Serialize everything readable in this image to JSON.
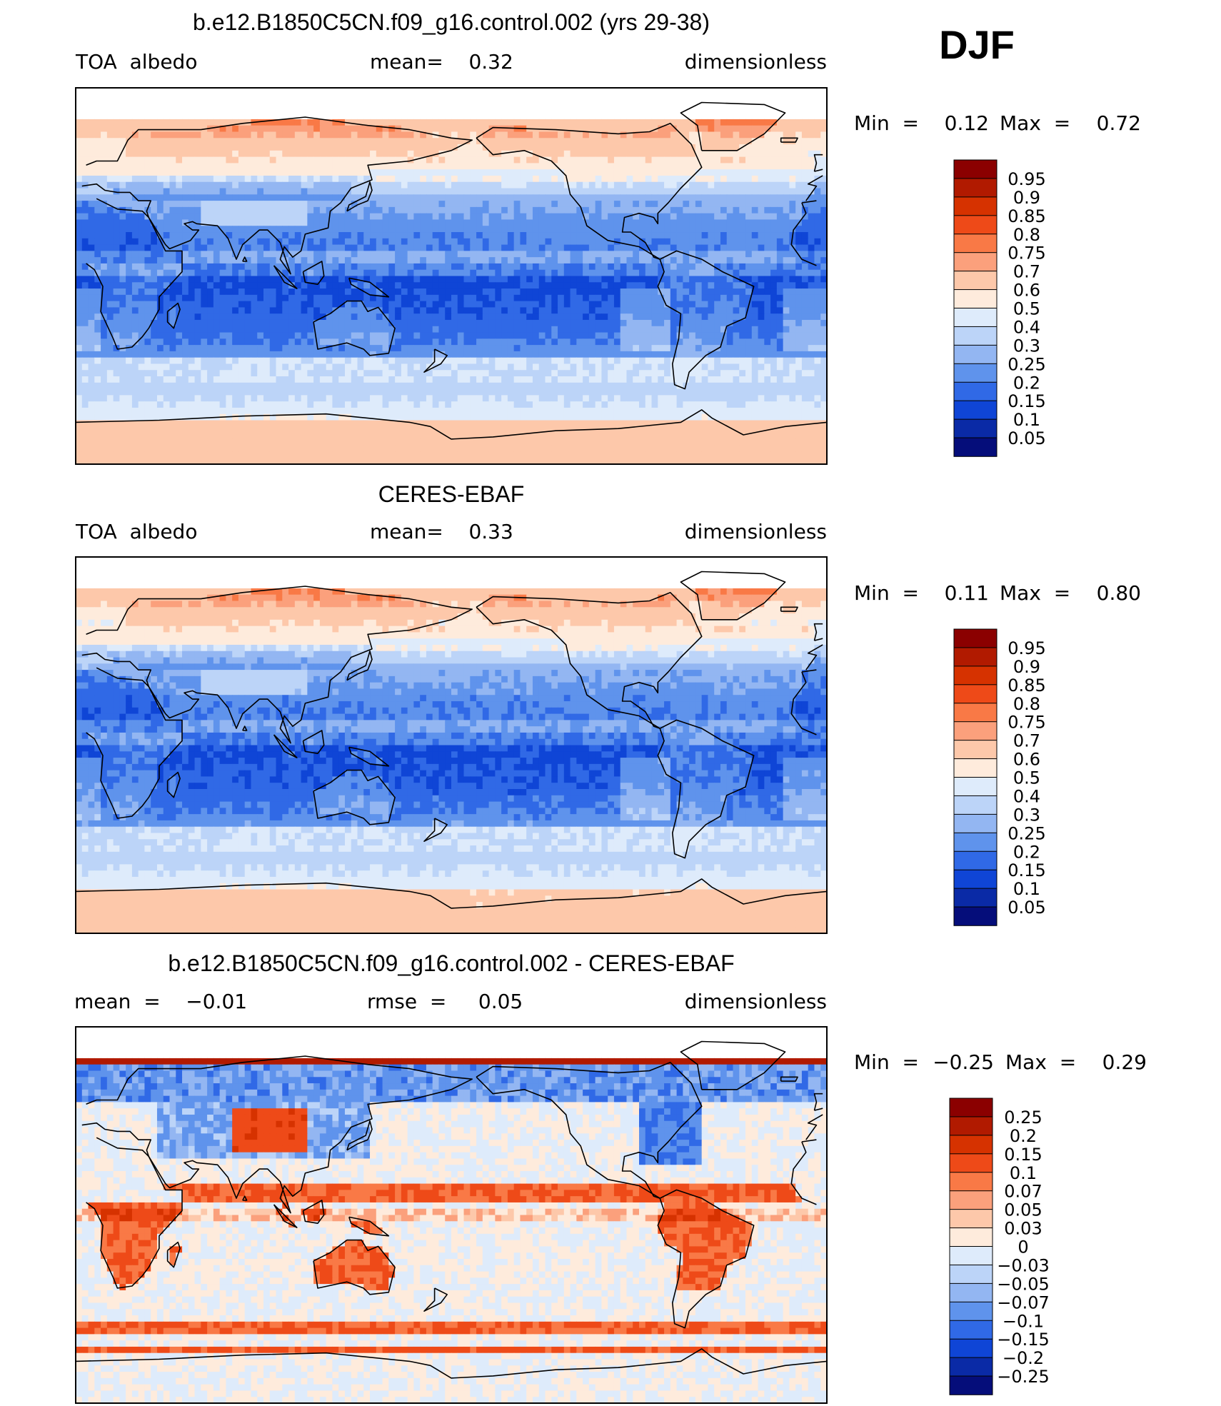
{
  "season": "DJF",
  "panels": [
    {
      "title": "b.e12.B1850C5CN.f09_g16.control.002 (yrs 29-38)",
      "left_label": "TOA  albedo",
      "center_label": "mean=    0.32",
      "right_label": "dimensionless",
      "minmax": {
        "min_label": "Min  =",
        "min_value": "0.12",
        "max_label": "Max  =",
        "max_value": "0.72"
      },
      "colorbar": {
        "labels": [
          "0.95",
          "0.9",
          "0.85",
          "0.8",
          "0.75",
          "0.7",
          "0.6",
          "0.5",
          "0.4",
          "0.3",
          "0.25",
          "0.2",
          "0.15",
          "0.1",
          "0.05"
        ],
        "colors": [
          "#8b0000",
          "#b11a00",
          "#d63200",
          "#ee4a18",
          "#f97946",
          "#fba07c",
          "#fdc8aa",
          "#feebdc",
          "#deebfb",
          "#bcd4f8",
          "#93b6f2",
          "#5f93ec",
          "#3069e6",
          "#0f45d6",
          "#0a2aa6",
          "#050d7a"
        ]
      },
      "map_type": "albedo",
      "mean_value": 0.32
    },
    {
      "title": "CERES-EBAF",
      "left_label": "TOA  albedo",
      "center_label": "mean=    0.33",
      "right_label": "dimensionless",
      "minmax": {
        "min_label": "Min  =",
        "min_value": "0.11",
        "max_label": "Max  =",
        "max_value": "0.80"
      },
      "colorbar": {
        "labels": [
          "0.95",
          "0.9",
          "0.85",
          "0.8",
          "0.75",
          "0.7",
          "0.6",
          "0.5",
          "0.4",
          "0.3",
          "0.25",
          "0.2",
          "0.15",
          "0.1",
          "0.05"
        ],
        "colors": [
          "#8b0000",
          "#b11a00",
          "#d63200",
          "#ee4a18",
          "#f97946",
          "#fba07c",
          "#fdc8aa",
          "#feebdc",
          "#deebfb",
          "#bcd4f8",
          "#93b6f2",
          "#5f93ec",
          "#3069e6",
          "#0f45d6",
          "#0a2aa6",
          "#050d7a"
        ]
      },
      "map_type": "albedo",
      "mean_value": 0.33
    },
    {
      "title": "b.e12.B1850C5CN.f09_g16.control.002 - CERES-EBAF",
      "left_label": "mean  =    −0.01",
      "center_label": "rmse  =     0.05",
      "right_label": "dimensionless",
      "minmax": {
        "min_label": "Min  =",
        "min_value": "−0.25",
        "max_label": "Max  =",
        "max_value": "0.29"
      },
      "colorbar": {
        "labels": [
          "0.25",
          "0.2",
          "0.15",
          "0.1",
          "0.07",
          "0.05",
          "0.03",
          "0",
          "−0.03",
          "−0.05",
          "−0.07",
          "−0.1",
          "−0.15",
          "−0.2",
          "−0.25"
        ],
        "colors": [
          "#8b0000",
          "#b11a00",
          "#d63200",
          "#ee4a18",
          "#f97946",
          "#fba07c",
          "#fdc8aa",
          "#feebdc",
          "#deebfb",
          "#bcd4f8",
          "#93b6f2",
          "#5f93ec",
          "#3069e6",
          "#0f45d6",
          "#0a2aa6",
          "#050d7a"
        ]
      },
      "map_type": "difference",
      "mean_value": -0.01,
      "rmse_value": 0.05
    }
  ]
}
